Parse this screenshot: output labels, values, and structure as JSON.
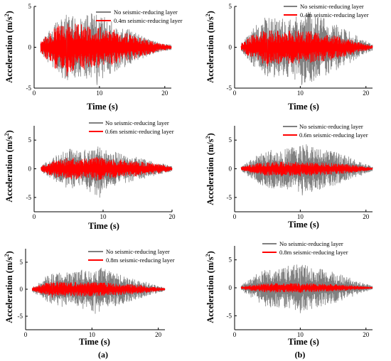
{
  "panels": [
    {
      "id": "a1",
      "ylabel_main": "Acceleration (m/s",
      "ylabel_sup": "2",
      "ylabel_close": ")",
      "xlabel": "Time (s)",
      "legend": [
        "No seismic-reducing layer",
        "0.4m seismic-reducing layer"
      ]
    },
    {
      "id": "b1",
      "ylabel_main": "Acceleration (m/s",
      "ylabel_sup": "2",
      "ylabel_close": ")",
      "xlabel": "Time (s)",
      "legend": [
        "No seismic-reducing layer",
        "0.4m seismic-reducing layer"
      ]
    },
    {
      "id": "a2",
      "ylabel_main": "Acceleration (m/s",
      "ylabel_sup": "2",
      "ylabel_close": ")",
      "xlabel": "Time (s)",
      "legend": [
        "No seismic-reducing layer",
        "0.6m seismic-reducing layer"
      ]
    },
    {
      "id": "b2",
      "ylabel_main": "Acceleration (m/s",
      "ylabel_sup": "2",
      "ylabel_close": ")",
      "xlabel": "Time (s)",
      "legend": [
        "No seismic-reducing layer",
        "0.6m seismic-reducing layer"
      ]
    },
    {
      "id": "a3",
      "ylabel_main": "Acceleration (m/s",
      "ylabel_sup": "2",
      "ylabel_close": ")",
      "xlabel": "Time (s)",
      "legend": [
        "No seismic-reducing layer",
        "0.8m seismic-reducing layer"
      ]
    },
    {
      "id": "b3",
      "ylabel_main": "Acceleration (m/s",
      "ylabel_sup": "2",
      "ylabel_close": ")",
      "xlabel": "Time (s)",
      "legend": [
        "No seismic-reducing layer",
        "0.8m seismic-reducing layer"
      ]
    }
  ],
  "captions": {
    "left": "(a)",
    "right": "(b)"
  },
  "colors": {
    "no_layer": "#808080",
    "with_layer": "#ff0000",
    "axis": "#000000"
  },
  "chart_data": [
    {
      "type": "line",
      "xlabel": "Time (s)",
      "ylabel": "Acceleration (m/s2)",
      "xlim": [
        0,
        21
      ],
      "ylim": [
        -5,
        5
      ],
      "xticks": [
        0,
        10,
        20
      ],
      "yticks": [
        -5,
        0,
        5
      ],
      "legend_position": "top-right",
      "series": [
        {
          "name": "No seismic-reducing layer",
          "color": "#808080",
          "t_range": [
            1,
            21
          ],
          "peak_abs": 4.6,
          "peak_time": 9.6,
          "envelope": [
            [
              1,
              0.6
            ],
            [
              3,
              2.8
            ],
            [
              5,
              4.2
            ],
            [
              7,
              3.6
            ],
            [
              9,
              4.5
            ],
            [
              11,
              3.6
            ],
            [
              13,
              2.8
            ],
            [
              15,
              2.0
            ],
            [
              17,
              1.2
            ],
            [
              19,
              0.6
            ],
            [
              21,
              0.3
            ]
          ]
        },
        {
          "name": "0.4m seismic-reducing layer",
          "color": "#ff0000",
          "t_range": [
            1,
            21
          ],
          "peak_abs": 3.5,
          "peak_time": 5.0,
          "envelope": [
            [
              1,
              0.6
            ],
            [
              3,
              2.5
            ],
            [
              5,
              3.3
            ],
            [
              7,
              2.8
            ],
            [
              9,
              2.6
            ],
            [
              11,
              2.4
            ],
            [
              13,
              2.0
            ],
            [
              15,
              1.5
            ],
            [
              17,
              1.0
            ],
            [
              19,
              0.5
            ],
            [
              21,
              0.2
            ]
          ]
        }
      ]
    },
    {
      "type": "line",
      "xlabel": "Time (s)",
      "ylabel": "Acceleration (m/s2)",
      "xlim": [
        0,
        21
      ],
      "ylim": [
        -5,
        5
      ],
      "xticks": [
        0,
        10,
        20
      ],
      "yticks": [
        -5,
        0,
        5
      ],
      "legend_position": "top-right",
      "series": [
        {
          "name": "No seismic-reducing layer",
          "color": "#808080",
          "t_range": [
            1,
            21
          ],
          "peak_abs": 4.6,
          "peak_time": 10.2,
          "envelope": [
            [
              1,
              0.5
            ],
            [
              3,
              2.5
            ],
            [
              5,
              4.0
            ],
            [
              7,
              3.5
            ],
            [
              9,
              4.0
            ],
            [
              11,
              4.5
            ],
            [
              13,
              3.8
            ],
            [
              15,
              3.0
            ],
            [
              17,
              2.2
            ],
            [
              19,
              1.2
            ],
            [
              21,
              0.4
            ]
          ]
        },
        {
          "name": "0.4m seismic-reducing layer",
          "color": "#ff0000",
          "t_range": [
            1,
            21
          ],
          "peak_abs": 2.3,
          "peak_time": 5.0,
          "envelope": [
            [
              1,
              0.4
            ],
            [
              3,
              1.7
            ],
            [
              5,
              2.1
            ],
            [
              7,
              2.0
            ],
            [
              9,
              2.0
            ],
            [
              11,
              2.0
            ],
            [
              13,
              1.8
            ],
            [
              15,
              1.5
            ],
            [
              17,
              1.1
            ],
            [
              19,
              0.6
            ],
            [
              21,
              0.2
            ]
          ]
        }
      ]
    },
    {
      "type": "line",
      "xlabel": "Time (s)",
      "ylabel": "Acceleration (m/s2)",
      "xlim": [
        0,
        20
      ],
      "ylim": [
        -7.5,
        7.5
      ],
      "xticks": [
        0,
        10,
        20
      ],
      "yticks": [
        -5,
        0,
        5
      ],
      "legend_position": "top-right",
      "series": [
        {
          "name": "No seismic-reducing layer",
          "color": "#808080",
          "t_range": [
            1,
            20
          ],
          "peak_abs": 5.0,
          "peak_time": 9.5,
          "envelope": [
            [
              1,
              0.5
            ],
            [
              3,
              2.2
            ],
            [
              5,
              3.5
            ],
            [
              7,
              3.0
            ],
            [
              9,
              4.8
            ],
            [
              11,
              3.2
            ],
            [
              13,
              2.5
            ],
            [
              15,
              2.0
            ],
            [
              17,
              1.4
            ],
            [
              19,
              0.8
            ],
            [
              20,
              0.4
            ]
          ]
        },
        {
          "name": "0.6m seismic-reducing layer",
          "color": "#ff0000",
          "t_range": [
            1,
            20
          ],
          "peak_abs": 2.0,
          "peak_time": 9.0,
          "envelope": [
            [
              1,
              0.4
            ],
            [
              3,
              1.5
            ],
            [
              5,
              1.9
            ],
            [
              7,
              1.8
            ],
            [
              9,
              2.0
            ],
            [
              11,
              1.8
            ],
            [
              13,
              1.5
            ],
            [
              15,
              1.3
            ],
            [
              17,
              1.0
            ],
            [
              19,
              0.6
            ],
            [
              20,
              0.3
            ]
          ]
        }
      ]
    },
    {
      "type": "line",
      "xlabel": "Time (s)",
      "ylabel": "Acceleration (m/s2)",
      "xlim": [
        0,
        21
      ],
      "ylim": [
        -7.5,
        7.5
      ],
      "xticks": [
        0,
        10,
        20
      ],
      "yticks": [
        -5,
        0,
        5
      ],
      "legend_position": "top-right",
      "series": [
        {
          "name": "No seismic-reducing layer",
          "color": "#808080",
          "t_range": [
            1,
            21
          ],
          "peak_abs": 4.6,
          "peak_time": 10.3,
          "envelope": [
            [
              1,
              0.4
            ],
            [
              3,
              2.0
            ],
            [
              5,
              3.5
            ],
            [
              7,
              3.3
            ],
            [
              9,
              3.8
            ],
            [
              11,
              4.3
            ],
            [
              13,
              3.6
            ],
            [
              15,
              3.0
            ],
            [
              17,
              2.3
            ],
            [
              19,
              1.3
            ],
            [
              21,
              0.4
            ]
          ]
        },
        {
          "name": "0.6m seismic-reducing layer",
          "color": "#ff0000",
          "t_range": [
            1,
            21
          ],
          "peak_abs": 1.3,
          "peak_time": 10.0,
          "envelope": [
            [
              1,
              0.3
            ],
            [
              3,
              0.9
            ],
            [
              5,
              1.2
            ],
            [
              7,
              1.2
            ],
            [
              9,
              1.2
            ],
            [
              11,
              1.2
            ],
            [
              13,
              1.1
            ],
            [
              15,
              1.0
            ],
            [
              17,
              0.8
            ],
            [
              19,
              0.5
            ],
            [
              21,
              0.2
            ]
          ]
        }
      ]
    },
    {
      "type": "line",
      "xlabel": "Time (s)",
      "ylabel": "Acceleration (m/s2)",
      "xlim": [
        0,
        21
      ],
      "ylim": [
        -7.5,
        7.5
      ],
      "xticks": [
        0,
        10,
        20
      ],
      "yticks": [
        -5,
        0,
        5
      ],
      "legend_position": "top-right",
      "series": [
        {
          "name": "No seismic-reducing layer",
          "color": "#808080",
          "t_range": [
            1,
            21
          ],
          "peak_abs": 4.5,
          "peak_time": 10.5,
          "envelope": [
            [
              1,
              0.4
            ],
            [
              3,
              2.3
            ],
            [
              5,
              3.3
            ],
            [
              7,
              3.0
            ],
            [
              9,
              3.8
            ],
            [
              11,
              4.2
            ],
            [
              13,
              3.3
            ],
            [
              15,
              2.6
            ],
            [
              17,
              1.8
            ],
            [
              19,
              1.0
            ],
            [
              21,
              0.3
            ]
          ]
        },
        {
          "name": "0.8m seismic-reducing layer",
          "color": "#ff0000",
          "t_range": [
            1,
            21
          ],
          "peak_abs": 1.5,
          "peak_time": 4.0,
          "envelope": [
            [
              1,
              0.3
            ],
            [
              3,
              1.2
            ],
            [
              5,
              1.4
            ],
            [
              7,
              1.3
            ],
            [
              9,
              1.3
            ],
            [
              11,
              1.3
            ],
            [
              13,
              1.1
            ],
            [
              15,
              1.0
            ],
            [
              17,
              0.8
            ],
            [
              19,
              0.5
            ],
            [
              21,
              0.2
            ]
          ]
        }
      ]
    },
    {
      "type": "line",
      "xlabel": "Time (s)",
      "ylabel": "Acceleration (m/s2)",
      "xlim": [
        0,
        21
      ],
      "ylim": [
        -7.5,
        7.5
      ],
      "xticks": [
        0,
        10,
        20
      ],
      "yticks": [
        -5,
        0,
        5
      ],
      "legend_position": "top-right",
      "series": [
        {
          "name": "No seismic-reducing layer",
          "color": "#808080",
          "t_range": [
            1,
            21
          ],
          "peak_abs": 4.5,
          "peak_time": 10.0,
          "envelope": [
            [
              1,
              0.4
            ],
            [
              3,
              2.2
            ],
            [
              5,
              3.6
            ],
            [
              7,
              3.5
            ],
            [
              9,
              4.2
            ],
            [
              11,
              4.0
            ],
            [
              13,
              3.4
            ],
            [
              15,
              2.8
            ],
            [
              17,
              2.0
            ],
            [
              19,
              1.1
            ],
            [
              21,
              0.3
            ]
          ]
        },
        {
          "name": "0.8m seismic-reducing layer",
          "color": "#ff0000",
          "t_range": [
            1,
            21
          ],
          "peak_abs": 0.9,
          "peak_time": 10.0,
          "envelope": [
            [
              1,
              0.2
            ],
            [
              3,
              0.6
            ],
            [
              5,
              0.8
            ],
            [
              7,
              0.8
            ],
            [
              9,
              0.8
            ],
            [
              11,
              0.8
            ],
            [
              13,
              0.7
            ],
            [
              15,
              0.7
            ],
            [
              17,
              0.5
            ],
            [
              19,
              0.3
            ],
            [
              21,
              0.1
            ]
          ]
        }
      ]
    }
  ]
}
